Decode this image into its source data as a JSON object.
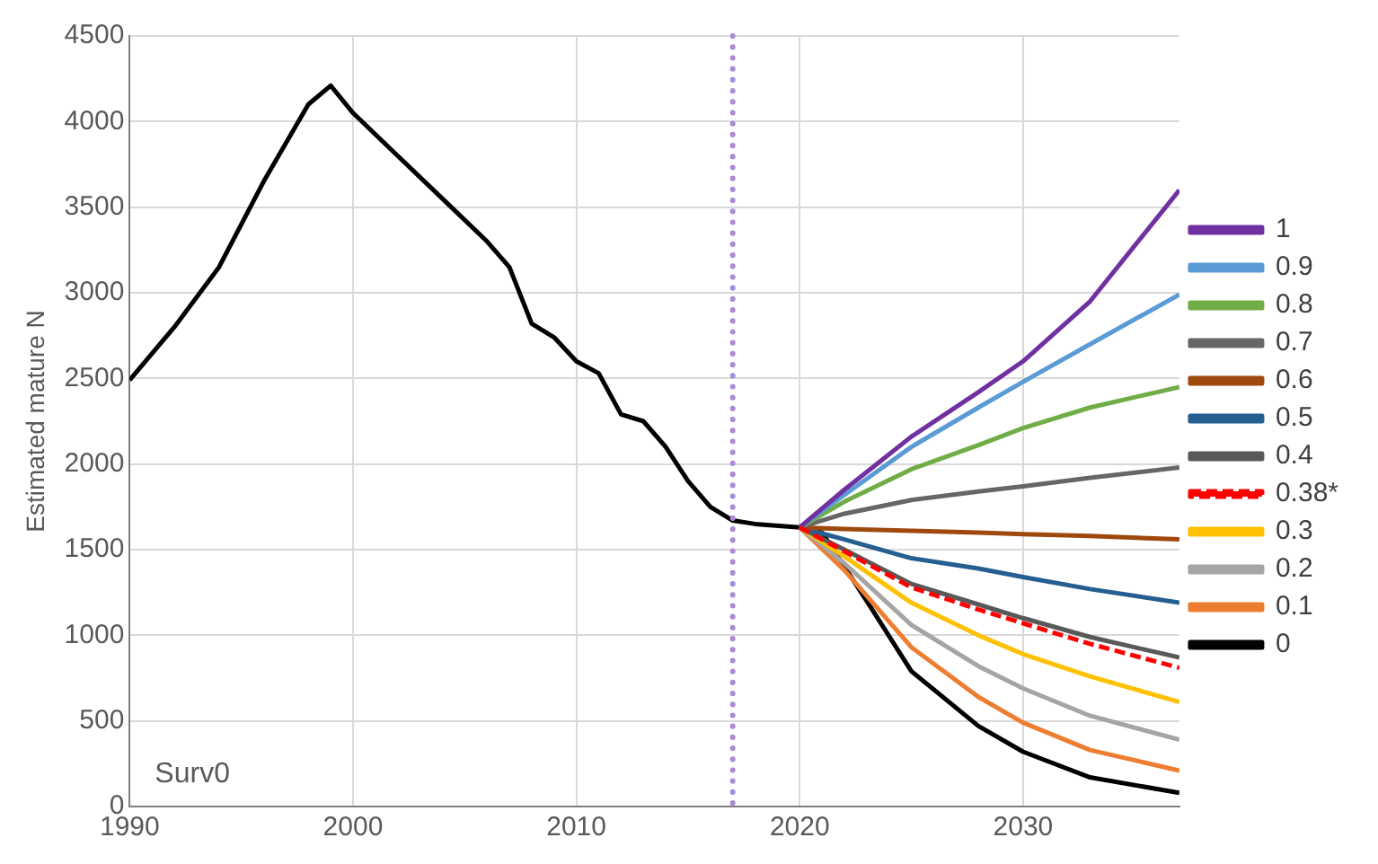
{
  "chart_data": {
    "type": "line",
    "ylabel": "Estimated mature N",
    "annotations": [
      "Surv0"
    ],
    "xlim": [
      1990,
      2037
    ],
    "xticks": [
      1990,
      2000,
      2010,
      2020,
      2030
    ],
    "ylim": [
      0,
      4500
    ],
    "yticks": [
      0,
      500,
      1000,
      1500,
      2000,
      2500,
      3000,
      3500,
      4000,
      4500
    ],
    "grid": true,
    "legend": "right",
    "marker": "none",
    "line_style": "solid",
    "ref_lines": [
      {
        "axis": "x",
        "value": 2017,
        "color": "#a98bd6",
        "line_style": "dotted"
      }
    ],
    "series": [
      {
        "name": "1",
        "color": "#7030a0",
        "x": [
          2020,
          2022,
          2025,
          2028,
          2030,
          2033,
          2037
        ],
        "values": [
          1630,
          1850,
          2160,
          2420,
          2600,
          2950,
          3600
        ]
      },
      {
        "name": "0.9",
        "color": "#5b9bd5",
        "x": [
          2020,
          2022,
          2025,
          2028,
          2030,
          2033,
          2037
        ],
        "values": [
          1630,
          1820,
          2100,
          2330,
          2480,
          2700,
          2990
        ]
      },
      {
        "name": "0.8",
        "color": "#70ad47",
        "x": [
          2020,
          2022,
          2025,
          2028,
          2030,
          2033,
          2037
        ],
        "values": [
          1630,
          1780,
          1970,
          2110,
          2210,
          2330,
          2450
        ]
      },
      {
        "name": "0.7",
        "color": "#666666",
        "x": [
          2020,
          2022,
          2025,
          2028,
          2030,
          2033,
          2037
        ],
        "values": [
          1630,
          1710,
          1790,
          1840,
          1870,
          1920,
          1980
        ]
      },
      {
        "name": "0.6",
        "color": "#9e480e",
        "x": [
          2020,
          2022,
          2025,
          2028,
          2030,
          2033,
          2037
        ],
        "values": [
          1630,
          1620,
          1610,
          1600,
          1590,
          1580,
          1560
        ]
      },
      {
        "name": "0.5",
        "color": "#255e91",
        "x": [
          2020,
          2022,
          2025,
          2028,
          2030,
          2033,
          2037
        ],
        "values": [
          1630,
          1560,
          1450,
          1390,
          1340,
          1270,
          1190
        ]
      },
      {
        "name": "0.4",
        "color": "#595959",
        "x": [
          2020,
          2022,
          2025,
          2028,
          2030,
          2033,
          2037
        ],
        "values": [
          1630,
          1500,
          1300,
          1180,
          1100,
          990,
          870
        ]
      },
      {
        "name": "0.38*",
        "color": "#ff0000",
        "line_style": "dashed",
        "x": [
          2020,
          2022,
          2025,
          2028,
          2030,
          2033,
          2037
        ],
        "values": [
          1630,
          1490,
          1280,
          1150,
          1070,
          950,
          810
        ]
      },
      {
        "name": "0.3",
        "color": "#ffc000",
        "x": [
          2020,
          2022,
          2025,
          2028,
          2030,
          2033,
          2037
        ],
        "values": [
          1630,
          1460,
          1190,
          1000,
          890,
          760,
          610
        ]
      },
      {
        "name": "0.2",
        "color": "#a5a5a5",
        "x": [
          2020,
          2022,
          2025,
          2028,
          2030,
          2033,
          2037
        ],
        "values": [
          1630,
          1420,
          1060,
          820,
          690,
          530,
          390
        ]
      },
      {
        "name": "0.1",
        "color": "#ed7d31",
        "x": [
          2020,
          2022,
          2025,
          2028,
          2030,
          2033,
          2037
        ],
        "values": [
          1630,
          1380,
          930,
          640,
          490,
          330,
          210
        ]
      },
      {
        "name": "0",
        "color": "#000000",
        "x": [
          1990,
          1992,
          1994,
          1996,
          1998,
          1999,
          2000,
          2002,
          2004,
          2006,
          2007,
          2008,
          2009,
          2010,
          2011,
          2012,
          2013,
          2014,
          2015,
          2016,
          2017,
          2018,
          2020,
          2021,
          2023,
          2025,
          2028,
          2030,
          2033,
          2037
        ],
        "values": [
          2490,
          2800,
          3150,
          3650,
          4100,
          4210,
          4050,
          3800,
          3550,
          3300,
          3150,
          2820,
          2740,
          2600,
          2530,
          2290,
          2250,
          2100,
          1900,
          1750,
          1670,
          1650,
          1630,
          1600,
          1200,
          790,
          470,
          320,
          170,
          80
        ]
      }
    ]
  }
}
